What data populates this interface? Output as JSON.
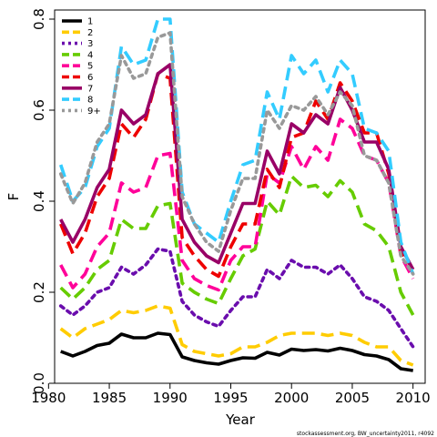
{
  "chart_data": {
    "type": "line",
    "title": "",
    "xlabel": "Year",
    "ylabel": "F",
    "xlim": [
      1980.5,
      2011
    ],
    "ylim": [
      0,
      0.82
    ],
    "xticks": [
      1980,
      1985,
      1990,
      1995,
      2000,
      2005,
      2010
    ],
    "yticks": [
      0.0,
      0.2,
      0.4,
      0.6,
      0.8
    ],
    "ytick_labels": [
      "0.0",
      "0.2",
      "0.4",
      "0.6",
      "0.8"
    ],
    "grid": false,
    "legend_position": "top-left",
    "x": [
      1981,
      1982,
      1983,
      1984,
      1985,
      1986,
      1987,
      1988,
      1989,
      1990,
      1991,
      1992,
      1993,
      1994,
      1995,
      1996,
      1997,
      1998,
      1999,
      2000,
      2001,
      2002,
      2003,
      2004,
      2005,
      2006,
      2007,
      2008,
      2009,
      2010
    ],
    "series": [
      {
        "name": "1",
        "color": "#000000",
        "dash": "solid",
        "values": [
          0.07,
          0.06,
          0.07,
          0.083,
          0.088,
          0.108,
          0.1,
          0.1,
          0.11,
          0.107,
          0.058,
          0.05,
          0.045,
          0.042,
          0.05,
          0.056,
          0.055,
          0.068,
          0.062,
          0.075,
          0.072,
          0.074,
          0.071,
          0.077,
          0.072,
          0.063,
          0.06,
          0.052,
          0.032,
          0.028
        ]
      },
      {
        "name": "2",
        "color": "#ffcc00",
        "dash": "dashed",
        "values": [
          0.12,
          0.1,
          0.12,
          0.13,
          0.14,
          0.16,
          0.155,
          0.16,
          0.17,
          0.165,
          0.085,
          0.07,
          0.065,
          0.06,
          0.065,
          0.08,
          0.08,
          0.09,
          0.105,
          0.11,
          0.11,
          0.11,
          0.105,
          0.11,
          0.105,
          0.09,
          0.08,
          0.08,
          0.05,
          0.04
        ]
      },
      {
        "name": "3",
        "color": "#6a0dad",
        "dash": "dotted",
        "values": [
          0.17,
          0.15,
          0.17,
          0.2,
          0.21,
          0.255,
          0.24,
          0.26,
          0.295,
          0.29,
          0.18,
          0.15,
          0.135,
          0.125,
          0.16,
          0.19,
          0.19,
          0.25,
          0.23,
          0.27,
          0.255,
          0.255,
          0.24,
          0.26,
          0.23,
          0.19,
          0.18,
          0.16,
          0.12,
          0.08
        ]
      },
      {
        "name": "4",
        "color": "#66cc00",
        "dash": "dashed",
        "values": [
          0.21,
          0.185,
          0.21,
          0.25,
          0.27,
          0.36,
          0.34,
          0.34,
          0.39,
          0.395,
          0.22,
          0.2,
          0.185,
          0.175,
          0.23,
          0.28,
          0.295,
          0.4,
          0.37,
          0.455,
          0.43,
          0.435,
          0.41,
          0.445,
          0.42,
          0.35,
          0.335,
          0.3,
          0.2,
          0.15
        ]
      },
      {
        "name": "5",
        "color": "#ff0099",
        "dash": "dashed",
        "values": [
          0.26,
          0.21,
          0.24,
          0.3,
          0.33,
          0.44,
          0.42,
          0.43,
          0.5,
          0.505,
          0.27,
          0.23,
          0.215,
          0.205,
          0.27,
          0.3,
          0.3,
          0.46,
          0.44,
          0.52,
          0.47,
          0.52,
          0.49,
          0.58,
          0.56,
          0.5,
          0.49,
          0.44,
          0.28,
          0.23
        ]
      },
      {
        "name": "6",
        "color": "#ee0000",
        "dash": "dashed",
        "values": [
          0.35,
          0.285,
          0.33,
          0.41,
          0.45,
          0.57,
          0.54,
          0.58,
          0.68,
          0.67,
          0.32,
          0.28,
          0.25,
          0.235,
          0.3,
          0.35,
          0.35,
          0.47,
          0.43,
          0.54,
          0.55,
          0.62,
          0.58,
          0.66,
          0.62,
          0.55,
          0.55,
          0.46,
          0.29,
          0.25
        ]
      },
      {
        "name": "7",
        "color": "#990066",
        "dash": "solid",
        "values": [
          0.36,
          0.31,
          0.36,
          0.43,
          0.47,
          0.6,
          0.57,
          0.59,
          0.68,
          0.7,
          0.36,
          0.31,
          0.28,
          0.265,
          0.33,
          0.395,
          0.395,
          0.51,
          0.46,
          0.57,
          0.55,
          0.59,
          0.57,
          0.65,
          0.6,
          0.53,
          0.53,
          0.47,
          0.3,
          0.25
        ]
      },
      {
        "name": "8",
        "color": "#33ccff",
        "dash": "dashed",
        "values": [
          0.48,
          0.4,
          0.43,
          0.52,
          0.56,
          0.74,
          0.7,
          0.71,
          0.8,
          0.8,
          0.42,
          0.35,
          0.33,
          0.31,
          0.4,
          0.48,
          0.49,
          0.64,
          0.58,
          0.72,
          0.68,
          0.71,
          0.64,
          0.71,
          0.68,
          0.56,
          0.55,
          0.51,
          0.31,
          0.24
        ]
      },
      {
        "name": "9+",
        "color": "#999999",
        "dash": "dotted",
        "values": [
          0.46,
          0.395,
          0.44,
          0.53,
          0.57,
          0.72,
          0.67,
          0.68,
          0.76,
          0.77,
          0.41,
          0.35,
          0.31,
          0.29,
          0.38,
          0.45,
          0.45,
          0.6,
          0.56,
          0.61,
          0.6,
          0.63,
          0.59,
          0.64,
          0.61,
          0.5,
          0.49,
          0.44,
          0.28,
          0.24
        ]
      }
    ]
  },
  "footer": {
    "text": "stockassessment.org, BW_uncertainty2011, r4092"
  }
}
